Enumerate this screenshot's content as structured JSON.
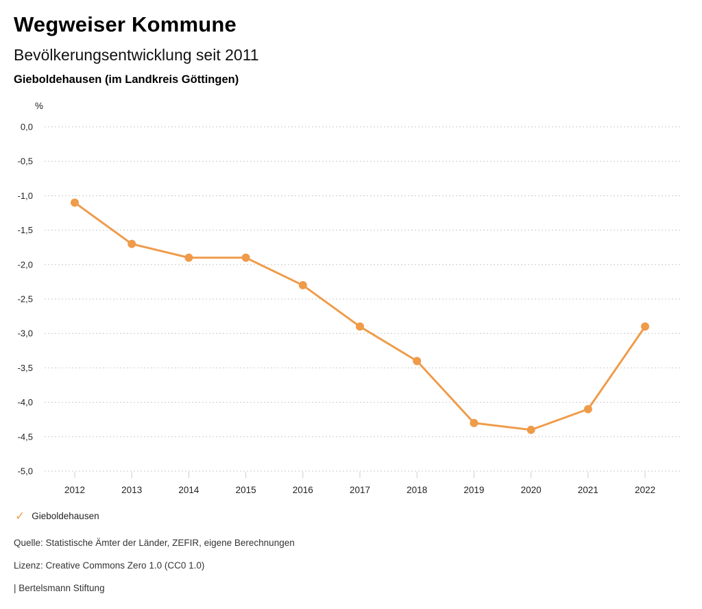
{
  "header": {
    "title": "Wegweiser Kommune",
    "subtitle": "Bevölkerungsentwicklung seit 2011",
    "locality": "Gieboldehausen (im Landkreis Göttingen)"
  },
  "chart_data": {
    "type": "line",
    "title": "Bevölkerungsentwicklung seit 2011",
    "unit_label": "%",
    "categories": [
      "2012",
      "2013",
      "2014",
      "2015",
      "2016",
      "2017",
      "2018",
      "2019",
      "2020",
      "2021",
      "2022"
    ],
    "series": [
      {
        "name": "Gieboldehausen",
        "color": "#EF9B4A",
        "values": [
          -1.1,
          -1.7,
          -1.9,
          -1.9,
          -2.3,
          -2.9,
          -3.4,
          -4.3,
          -4.4,
          -4.1,
          -2.9
        ]
      }
    ],
    "ylim": [
      -5.0,
      0.0
    ],
    "ytick_step": 0.5,
    "ytick_labels": [
      "0,0",
      "-0,5",
      "-1,0",
      "-1,5",
      "-2,0",
      "-2,5",
      "-3,0",
      "-3,5",
      "-4,0",
      "-4,5",
      "-5,0"
    ],
    "grid": "horizontal-dotted",
    "legend_position": "bottom-left"
  },
  "legend": {
    "marker": "check-icon",
    "label": "Gieboldehausen",
    "check_glyph": "✓"
  },
  "footer": {
    "source": "Quelle: Statistische Ämter der Länder, ZEFIR, eigene Berechnungen",
    "license": "Lizenz: Creative Commons Zero 1.0 (CC0 1.0)",
    "attribution": "| Bertelsmann Stiftung"
  },
  "colors": {
    "accent": "#EF9B4A",
    "grid": "#cccccc",
    "tick": "#cccccc",
    "axis_text": "#222222",
    "footer_text": "#333333"
  }
}
